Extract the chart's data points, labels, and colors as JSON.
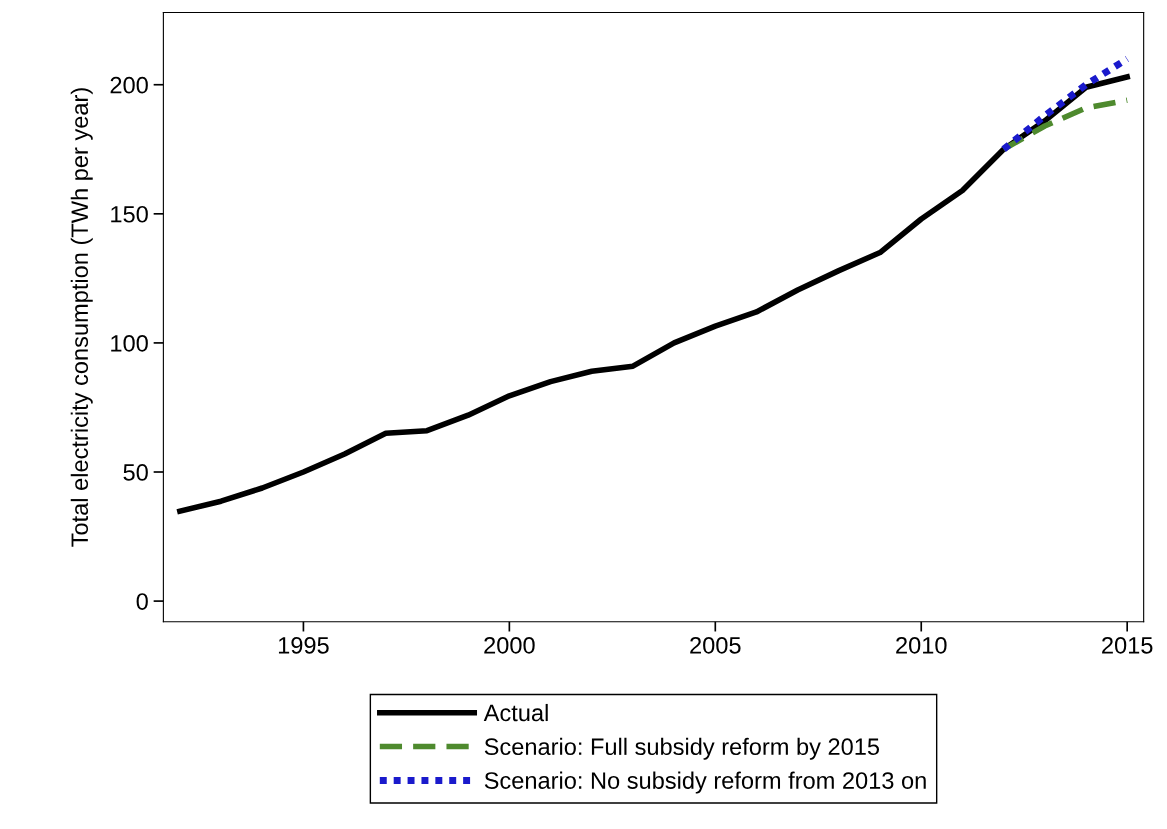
{
  "chart_data": {
    "type": "line",
    "ylabel": "Total electricity consumption (TWh per year)",
    "x": [
      1992,
      1993,
      1994,
      1995,
      1996,
      1997,
      1998,
      1999,
      2000,
      2001,
      2002,
      2003,
      2004,
      2005,
      2006,
      2007,
      2008,
      2009,
      2010,
      2011,
      2012,
      2013,
      2014,
      2015
    ],
    "series": [
      {
        "name": "Actual",
        "color": "#000000",
        "line_style": "solid",
        "values": [
          34.8,
          38.7,
          43.8,
          50,
          57,
          65,
          66,
          72,
          79.5,
          85,
          89,
          91,
          100,
          106.5,
          112,
          120.5,
          128,
          135,
          148,
          159,
          175,
          186,
          199,
          203
        ]
      },
      {
        "name": "Scenario: Full subsidy reform by 2015",
        "color": "#4e8a2e",
        "line_style": "dashed",
        "x": [
          2012,
          2013,
          2014,
          2015
        ],
        "values": [
          175,
          184,
          191,
          194
        ]
      },
      {
        "name": "Scenario: No subsidy reform from 2013 on",
        "color": "#1a1acc",
        "line_style": "dotted",
        "x": [
          2012,
          2013,
          2014,
          2015
        ],
        "values": [
          175,
          188,
          200,
          210
        ]
      }
    ],
    "xlim": [
      1991.6,
      2015.4
    ],
    "ylim": [
      -8,
      228
    ],
    "xticks": [
      1995,
      2000,
      2005,
      2010,
      2015
    ],
    "yticks": [
      0,
      50,
      100,
      150,
      200
    ],
    "grid": false,
    "legend": "bottom",
    "marker": "none"
  }
}
